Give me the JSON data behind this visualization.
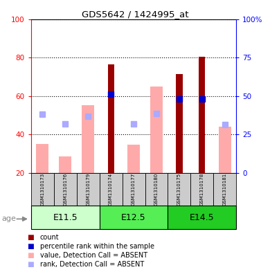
{
  "title": "GDS5642 / 1424995_at",
  "samples": [
    "GSM1310173",
    "GSM1310176",
    "GSM1310179",
    "GSM1310174",
    "GSM1310177",
    "GSM1310180",
    "GSM1310175",
    "GSM1310178",
    "GSM1310181"
  ],
  "groups": [
    {
      "label": "E11.5",
      "bg_color": "#ccffcc",
      "indices": [
        0,
        1,
        2
      ]
    },
    {
      "label": "E12.5",
      "bg_color": "#55ee55",
      "indices": [
        3,
        4,
        5
      ]
    },
    {
      "label": "E14.5",
      "bg_color": "#22cc22",
      "indices": [
        6,
        7,
        8
      ]
    }
  ],
  "count_values": [
    null,
    null,
    null,
    76.5,
    null,
    null,
    71.5,
    80.5,
    null
  ],
  "percentile_values": [
    null,
    null,
    null,
    61.0,
    null,
    null,
    58.5,
    58.5,
    null
  ],
  "absent_value": [
    35.0,
    28.5,
    55.0,
    null,
    34.5,
    65.0,
    null,
    null,
    44.0
  ],
  "absent_rank": [
    50.5,
    45.5,
    49.5,
    null,
    45.5,
    51.0,
    null,
    null,
    45.0
  ],
  "ylim_left": [
    20,
    100
  ],
  "ylim_right": [
    0,
    100
  ],
  "yticks_left": [
    20,
    40,
    60,
    80,
    100
  ],
  "yticks_right": [
    0,
    25,
    50,
    75,
    100
  ],
  "yticklabels_right": [
    "0",
    "25",
    "50",
    "75",
    "100%"
  ],
  "color_count": "#990000",
  "color_percentile": "#0000cc",
  "color_absent_value": "#ffaaaa",
  "color_absent_rank": "#aaaaff",
  "bar_bottom": 20,
  "bar_width": 0.55,
  "count_bar_width": 0.28,
  "figsize": [
    3.9,
    3.93
  ],
  "dpi": 100
}
